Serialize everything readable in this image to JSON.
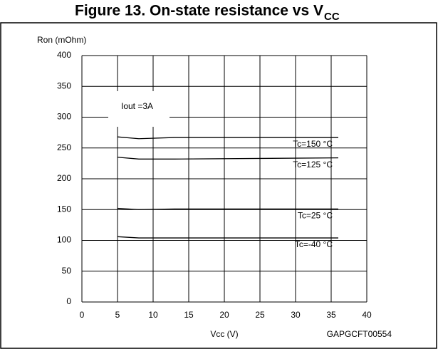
{
  "chart_data": {
    "type": "line",
    "title": "Figure 13. On-state resistance vs V",
    "title_subscript": "CC",
    "y_label": "Ron (mOhm)",
    "x_label": "Vcc (V)",
    "code": "GAPGCFT00554",
    "annotation": "Iout =3A",
    "x": [
      5,
      8,
      13,
      36
    ],
    "series": [
      {
        "name": "Tc=150 °C",
        "color": "#000000",
        "values": [
          268,
          265,
          267,
          267
        ]
      },
      {
        "name": "Tc=125 °C",
        "color": "#000000",
        "values": [
          235,
          232,
          232,
          234
        ]
      },
      {
        "name": "Tc=25 °C",
        "color": "#000000",
        "values": [
          152,
          150,
          151,
          151
        ]
      },
      {
        "name": "Tc=-40 °C",
        "color": "#000000",
        "values": [
          106,
          104,
          104,
          104
        ]
      }
    ],
    "xlim": [
      0,
      40
    ],
    "xticks": [
      0,
      5,
      10,
      15,
      20,
      25,
      30,
      35,
      40
    ],
    "ylim": [
      0,
      400
    ],
    "yticks": [
      0,
      50,
      100,
      150,
      200,
      250,
      300,
      350,
      400
    ],
    "grid": true
  }
}
